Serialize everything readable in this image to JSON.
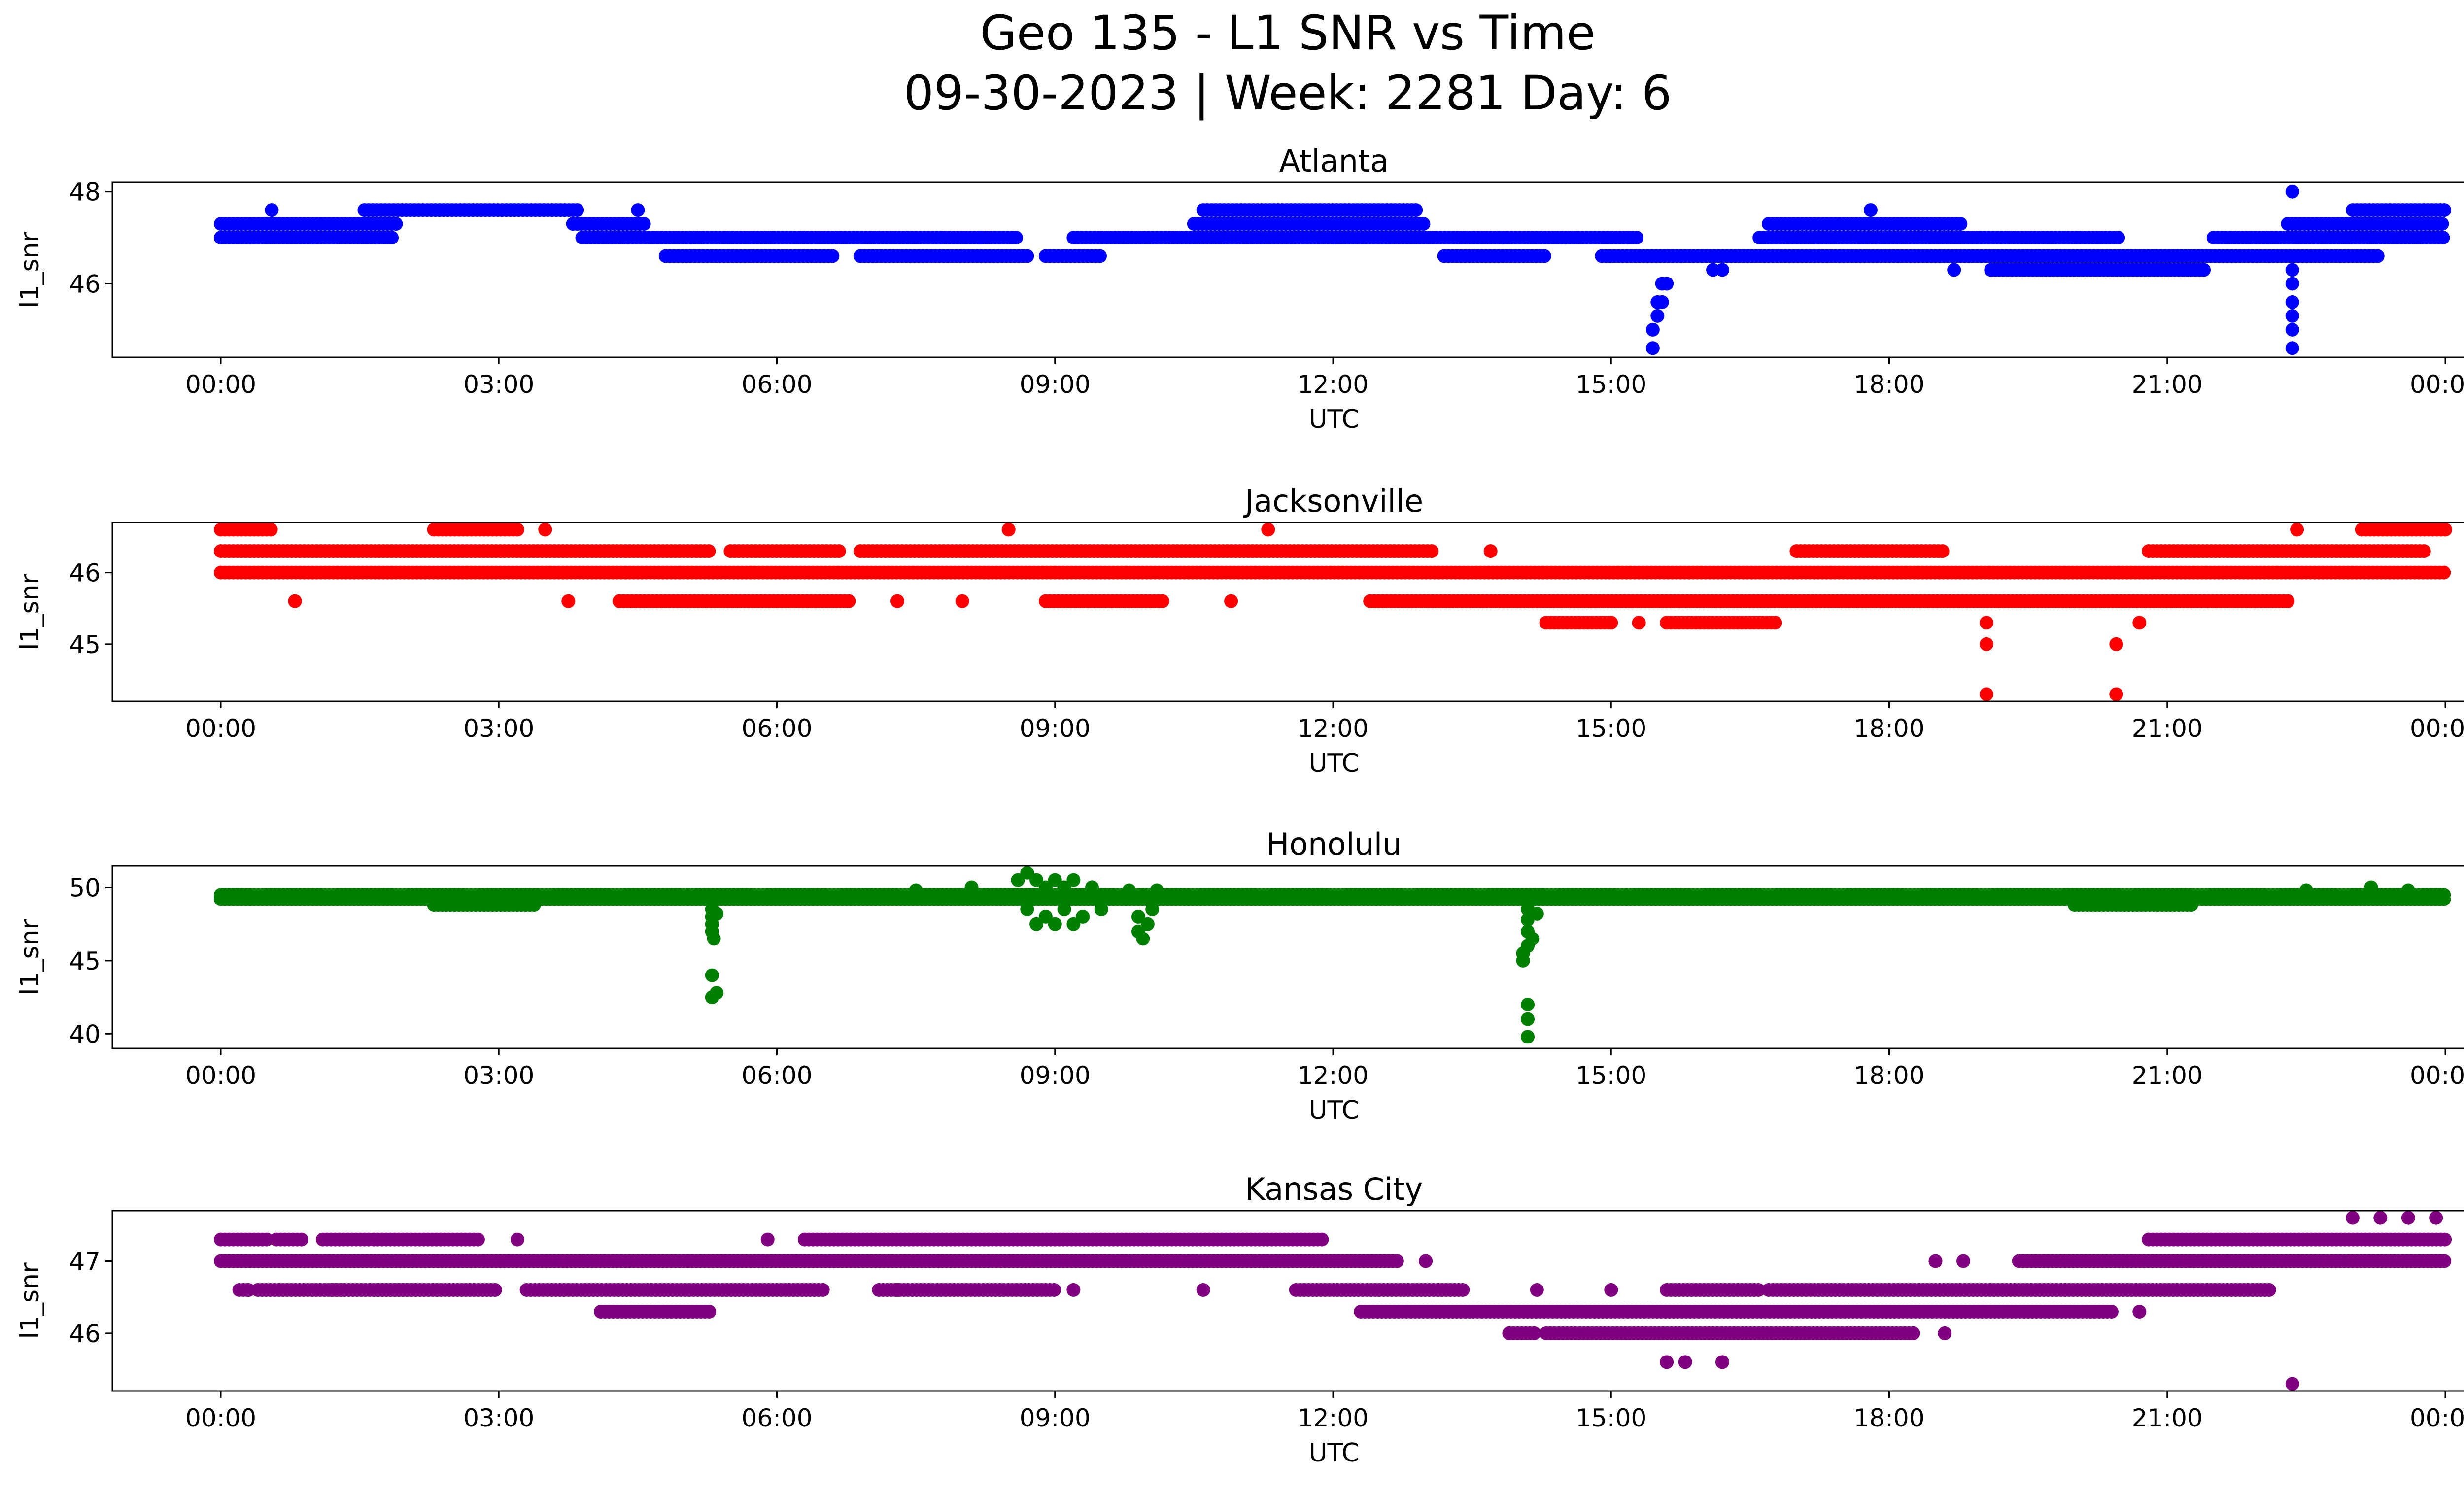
{
  "title_line1": "Geo 135 - L1 SNR vs Time",
  "title_line2": "09-30-2023 | Week: 2281 Day: 6",
  "chart_data": [
    {
      "type": "scatter",
      "title": "Atlanta",
      "xlabel": "UTC",
      "ylabel": "l1_snr",
      "color": "#0000ff",
      "x_ticks": [
        "00:00",
        "03:00",
        "06:00",
        "09:00",
        "12:00",
        "15:00",
        "18:00",
        "21:00",
        "00:00"
      ],
      "y_ticks": [
        46,
        48
      ],
      "ylim": [
        44.4,
        48.2
      ],
      "levels": [
        {
          "y": 47.3,
          "segments": [
            [
              0,
              1.9
            ],
            [
              3.8,
              4.6
            ],
            [
              10.5,
              13.0
            ],
            [
              16.7,
              18.8
            ],
            [
              22.3,
              24
            ]
          ]
        },
        {
          "y": 47.0,
          "segments": [
            [
              0,
              1.85
            ],
            [
              3.9,
              8.6
            ],
            [
              9.2,
              15.3
            ],
            [
              16.6,
              20.5
            ],
            [
              21.5,
              24
            ]
          ]
        },
        {
          "y": 47.6,
          "segments": [
            [
              1.55,
              3.85
            ],
            [
              10.6,
              12.9
            ],
            [
              23.0,
              24
            ]
          ]
        },
        {
          "y": 46.6,
          "segments": [
            [
              4.8,
              6.6
            ],
            [
              6.9,
              8.7
            ],
            [
              8.9,
              9.5
            ],
            [
              13.2,
              14.3
            ],
            [
              14.9,
              23.3
            ]
          ]
        },
        {
          "y": 46.3,
          "segments": [
            [
              19.1,
              21.4
            ]
          ]
        }
      ],
      "points": [
        {
          "x": 0.55,
          "y": 47.6
        },
        {
          "x": 4.5,
          "y": 47.6
        },
        {
          "x": 17.8,
          "y": 47.6
        },
        {
          "x": 22.35,
          "y": 48.0
        },
        {
          "x": 15.45,
          "y": 44.6
        },
        {
          "x": 15.45,
          "y": 45.0
        },
        {
          "x": 15.5,
          "y": 45.3
        },
        {
          "x": 15.5,
          "y": 45.6
        },
        {
          "x": 15.55,
          "y": 45.6
        },
        {
          "x": 15.55,
          "y": 46.0
        },
        {
          "x": 15.6,
          "y": 46.0
        },
        {
          "x": 16.1,
          "y": 46.3
        },
        {
          "x": 16.2,
          "y": 46.3
        },
        {
          "x": 18.7,
          "y": 46.3
        },
        {
          "x": 19.1,
          "y": 46.3
        },
        {
          "x": 22.35,
          "y": 44.6
        },
        {
          "x": 22.35,
          "y": 45.0
        },
        {
          "x": 22.35,
          "y": 45.3
        },
        {
          "x": 22.35,
          "y": 45.6
        },
        {
          "x": 22.35,
          "y": 46.0
        },
        {
          "x": 22.35,
          "y": 46.3
        },
        {
          "x": 8.2,
          "y": 47.0
        },
        {
          "x": 11.8,
          "y": 47.3
        },
        {
          "x": 12.0,
          "y": 47.0
        }
      ]
    },
    {
      "type": "scatter",
      "title": "Jacksonville",
      "xlabel": "UTC",
      "ylabel": "l1_snr",
      "color": "#ff0000",
      "x_ticks": [
        "00:00",
        "03:00",
        "06:00",
        "09:00",
        "12:00",
        "15:00",
        "18:00",
        "21:00",
        "00:00"
      ],
      "y_ticks": [
        45,
        46
      ],
      "ylim": [
        44.2,
        46.7
      ],
      "levels": [
        {
          "y": 46.3,
          "segments": [
            [
              0,
              5.3
            ],
            [
              5.5,
              6.7
            ],
            [
              6.9,
              13.1
            ],
            [
              17.0,
              18.6
            ],
            [
              20.8,
              23.8
            ]
          ]
        },
        {
          "y": 46.0,
          "segments": [
            [
              0,
              24
            ]
          ]
        },
        {
          "y": 46.6,
          "segments": [
            [
              0,
              0.55
            ],
            [
              2.3,
              3.2
            ],
            [
              23.1,
              24
            ]
          ]
        },
        {
          "y": 45.6,
          "segments": [
            [
              4.3,
              6.8
            ],
            [
              8.9,
              10.2
            ],
            [
              12.4,
              22.3
            ]
          ]
        },
        {
          "y": 45.3,
          "segments": [
            [
              14.3,
              15.0
            ],
            [
              15.6,
              16.8
            ]
          ]
        }
      ],
      "points": [
        {
          "x": 0.8,
          "y": 45.6
        },
        {
          "x": 3.5,
          "y": 46.6
        },
        {
          "x": 3.75,
          "y": 45.6
        },
        {
          "x": 7.3,
          "y": 45.6
        },
        {
          "x": 8.0,
          "y": 45.6
        },
        {
          "x": 8.5,
          "y": 46.6
        },
        {
          "x": 10.9,
          "y": 45.6
        },
        {
          "x": 11.3,
          "y": 46.6
        },
        {
          "x": 13.7,
          "y": 46.3
        },
        {
          "x": 22.4,
          "y": 46.6
        },
        {
          "x": 19.05,
          "y": 45.3
        },
        {
          "x": 19.05,
          "y": 45.0
        },
        {
          "x": 19.05,
          "y": 44.3
        },
        {
          "x": 20.45,
          "y": 45.0
        },
        {
          "x": 20.45,
          "y": 44.3
        },
        {
          "x": 20.7,
          "y": 45.3
        },
        {
          "x": 15.0,
          "y": 45.3
        },
        {
          "x": 15.3,
          "y": 45.3
        }
      ]
    },
    {
      "type": "scatter",
      "title": "Honolulu",
      "xlabel": "UTC",
      "ylabel": "l1_snr",
      "color": "#008000",
      "x_ticks": [
        "00:00",
        "03:00",
        "06:00",
        "09:00",
        "12:00",
        "15:00",
        "18:00",
        "21:00",
        "00:00"
      ],
      "y_ticks": [
        40,
        45,
        50
      ],
      "ylim": [
        39.0,
        51.5
      ],
      "levels": [
        {
          "y": 49.2,
          "segments": [
            [
              0,
              24
            ]
          ]
        },
        {
          "y": 49.5,
          "segments": [
            [
              0,
              24
            ]
          ]
        },
        {
          "y": 48.8,
          "segments": [
            [
              2.3,
              3.4
            ],
            [
              20.0,
              21.3
            ]
          ]
        }
      ],
      "points": [
        {
          "x": 5.3,
          "y": 48.5
        },
        {
          "x": 5.3,
          "y": 48.0
        },
        {
          "x": 5.3,
          "y": 47.5
        },
        {
          "x": 5.3,
          "y": 47.0
        },
        {
          "x": 5.32,
          "y": 46.5
        },
        {
          "x": 5.35,
          "y": 48.2
        },
        {
          "x": 5.3,
          "y": 44.0
        },
        {
          "x": 5.35,
          "y": 42.8
        },
        {
          "x": 5.3,
          "y": 42.5
        },
        {
          "x": 8.6,
          "y": 50.5
        },
        {
          "x": 8.7,
          "y": 51.0
        },
        {
          "x": 8.8,
          "y": 50.5
        },
        {
          "x": 8.9,
          "y": 50.0
        },
        {
          "x": 9.0,
          "y": 50.5
        },
        {
          "x": 9.1,
          "y": 50.0
        },
        {
          "x": 9.2,
          "y": 50.5
        },
        {
          "x": 9.4,
          "y": 50.0
        },
        {
          "x": 8.7,
          "y": 48.5
        },
        {
          "x": 8.8,
          "y": 47.5
        },
        {
          "x": 8.9,
          "y": 48.0
        },
        {
          "x": 9.0,
          "y": 47.5
        },
        {
          "x": 9.1,
          "y": 48.5
        },
        {
          "x": 9.2,
          "y": 47.5
        },
        {
          "x": 9.3,
          "y": 48.0
        },
        {
          "x": 9.5,
          "y": 48.5
        },
        {
          "x": 9.9,
          "y": 48.0
        },
        {
          "x": 9.9,
          "y": 47.0
        },
        {
          "x": 9.95,
          "y": 46.5
        },
        {
          "x": 10.0,
          "y": 47.5
        },
        {
          "x": 10.05,
          "y": 48.5
        },
        {
          "x": 10.1,
          "y": 49.8
        },
        {
          "x": 9.8,
          "y": 49.8
        },
        {
          "x": 14.1,
          "y": 48.5
        },
        {
          "x": 14.1,
          "y": 47.8
        },
        {
          "x": 14.1,
          "y": 47.0
        },
        {
          "x": 14.1,
          "y": 46.0
        },
        {
          "x": 14.05,
          "y": 45.5
        },
        {
          "x": 14.05,
          "y": 45.0
        },
        {
          "x": 14.15,
          "y": 46.5
        },
        {
          "x": 14.2,
          "y": 48.2
        },
        {
          "x": 14.1,
          "y": 42.0
        },
        {
          "x": 14.1,
          "y": 41.0
        },
        {
          "x": 14.1,
          "y": 39.8
        },
        {
          "x": 7.5,
          "y": 49.8
        },
        {
          "x": 8.1,
          "y": 50.0
        },
        {
          "x": 22.5,
          "y": 49.8
        },
        {
          "x": 23.2,
          "y": 50.0
        },
        {
          "x": 23.6,
          "y": 49.8
        }
      ]
    },
    {
      "type": "scatter",
      "title": "Kansas City",
      "xlabel": "UTC",
      "ylabel": "l1_snr",
      "color": "#800080",
      "x_ticks": [
        "00:00",
        "03:00",
        "06:00",
        "09:00",
        "12:00",
        "15:00",
        "18:00",
        "21:00",
        "00:00"
      ],
      "y_ticks": [
        46,
        47
      ],
      "ylim": [
        45.2,
        47.7
      ],
      "levels": [
        {
          "y": 47.3,
          "segments": [
            [
              0,
              0.5
            ],
            [
              0.6,
              0.9
            ],
            [
              1.1,
              1.6
            ],
            [
              1.65,
              2.8
            ],
            [
              6.3,
              11.9
            ],
            [
              20.8,
              24
            ]
          ]
        },
        {
          "y": 47.0,
          "segments": [
            [
              0,
              12.7
            ],
            [
              19.4,
              24
            ]
          ]
        },
        {
          "y": 46.6,
          "segments": [
            [
              0.2,
              0.3
            ],
            [
              0.4,
              1.3
            ],
            [
              1.2,
              2.1
            ],
            [
              1.7,
              3.0
            ],
            [
              3.3,
              6.5
            ],
            [
              7.1,
              9.0
            ],
            [
              11.6,
              13.4
            ],
            [
              15.6,
              16.6
            ],
            [
              16.7,
              22.1
            ]
          ]
        },
        {
          "y": 46.3,
          "segments": [
            [
              4.1,
              5.3
            ],
            [
              12.3,
              20.4
            ]
          ]
        },
        {
          "y": 46.0,
          "segments": [
            [
              13.9,
              14.2
            ],
            [
              14.3,
              18.3
            ]
          ]
        }
      ],
      "points": [
        {
          "x": 0.3,
          "y": 46.6
        },
        {
          "x": 3.2,
          "y": 47.3
        },
        {
          "x": 5.9,
          "y": 47.3
        },
        {
          "x": 7.3,
          "y": 46.6
        },
        {
          "x": 9.2,
          "y": 46.6
        },
        {
          "x": 10.6,
          "y": 46.6
        },
        {
          "x": 13.0,
          "y": 47.0
        },
        {
          "x": 14.2,
          "y": 46.6
        },
        {
          "x": 15.0,
          "y": 46.6
        },
        {
          "x": 15.6,
          "y": 45.6
        },
        {
          "x": 15.8,
          "y": 45.6
        },
        {
          "x": 16.2,
          "y": 45.6
        },
        {
          "x": 18.5,
          "y": 47.0
        },
        {
          "x": 18.8,
          "y": 47.0
        },
        {
          "x": 18.6,
          "y": 46.0
        },
        {
          "x": 20.7,
          "y": 46.3
        },
        {
          "x": 22.35,
          "y": 45.3
        },
        {
          "x": 23.0,
          "y": 47.6
        },
        {
          "x": 23.3,
          "y": 47.6
        },
        {
          "x": 23.6,
          "y": 47.6
        },
        {
          "x": 23.9,
          "y": 47.6
        }
      ]
    }
  ]
}
